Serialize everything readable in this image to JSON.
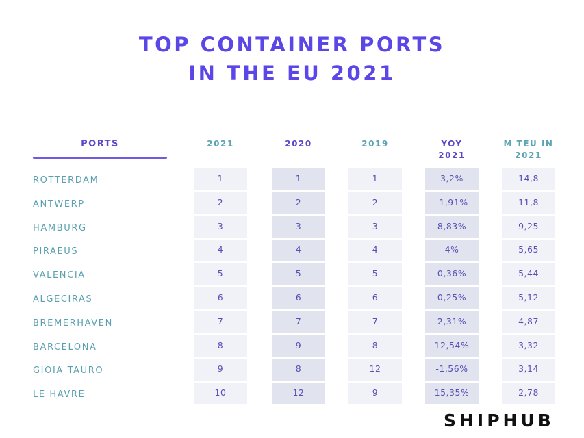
{
  "title": {
    "line1": "TOP CONTAINER PORTS",
    "line2": "IN THE EU 2021"
  },
  "brand": "SHIPHUB",
  "colors": {
    "title": "#5b46e8",
    "teal_text": "#5ba4b4",
    "purple_text": "#5a48c8",
    "cell_light": "#f1f2f7",
    "cell_dark": "#e1e4ef"
  },
  "chart_data": {
    "type": "table",
    "title": "TOP CONTAINER PORTS IN THE EU 2021",
    "columns": [
      "PORTS",
      "2021",
      "2020",
      "2019",
      "YOY 2021",
      "M TEU IN 2021"
    ],
    "column_headers": {
      "ports": "PORTS",
      "y2021": "2021",
      "y2020": "2020",
      "y2019": "2019",
      "yoy_line1": "YOY",
      "yoy_line2": "2021",
      "teu_line1": "M TEU IN",
      "teu_line2": "2021"
    },
    "rows": [
      {
        "port": "ROTTERDAM",
        "r2021": "1",
        "r2020": "1",
        "r2019": "1",
        "yoy": "3,2%",
        "teu": "14,8"
      },
      {
        "port": "ANTWERP",
        "r2021": "2",
        "r2020": "2",
        "r2019": "2",
        "yoy": "-1,91%",
        "teu": "11,8"
      },
      {
        "port": "HAMBURG",
        "r2021": "3",
        "r2020": "3",
        "r2019": "3",
        "yoy": "8,83%",
        "teu": "9,25"
      },
      {
        "port": "PIRAEUS",
        "r2021": "4",
        "r2020": "4",
        "r2019": "4",
        "yoy": "4%",
        "teu": "5,65"
      },
      {
        "port": "VALENCIA",
        "r2021": "5",
        "r2020": "5",
        "r2019": "5",
        "yoy": "0,36%",
        "teu": "5,44"
      },
      {
        "port": "ALGECIRAS",
        "r2021": "6",
        "r2020": "6",
        "r2019": "6",
        "yoy": "0,25%",
        "teu": "5,12"
      },
      {
        "port": "BREMERHAVEN",
        "r2021": "7",
        "r2020": "7",
        "r2019": "7",
        "yoy": "2,31%",
        "teu": "4,87"
      },
      {
        "port": "BARCELONA",
        "r2021": "8",
        "r2020": "9",
        "r2019": "8",
        "yoy": "12,54%",
        "teu": "3,32"
      },
      {
        "port": "GIOIA TAURO",
        "r2021": "9",
        "r2020": "8",
        "r2019": "12",
        "yoy": "-1,56%",
        "teu": "3,14"
      },
      {
        "port": "LE HAVRE",
        "r2021": "10",
        "r2020": "12",
        "r2019": "9",
        "yoy": "15,35%",
        "teu": "2,78"
      }
    ]
  }
}
